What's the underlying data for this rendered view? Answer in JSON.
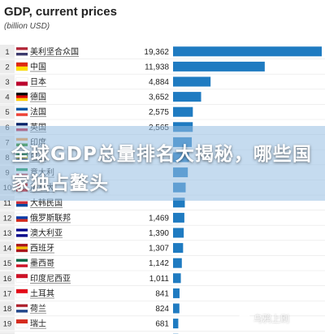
{
  "chart_data": {
    "type": "bar",
    "orientation": "horizontal",
    "title": "GDP, current prices",
    "subtitle": "(billion USD)",
    "ranks": [
      "1",
      "2",
      "3",
      "4",
      "5",
      "6",
      "7",
      "8",
      "9",
      "10",
      "11",
      "12",
      "13",
      "14",
      "15",
      "16",
      "17",
      "18",
      "19",
      "20"
    ],
    "categories": [
      "美利坚合众国",
      "中国",
      "日本",
      "德国",
      "法国",
      "英国",
      "印度",
      "巴西",
      "意大利",
      "加拿大",
      "大韩民国",
      "俄罗斯联邦",
      "澳大利亚",
      "西班牙",
      "墨西哥",
      "印度尼西亚",
      "土耳其",
      "荷兰",
      "瑞士",
      "沙特阿拉伯"
    ],
    "values": [
      19362,
      11938,
      4884,
      3652,
      2575,
      2565,
      2439,
      2081,
      1921,
      1640,
      1530,
      1469,
      1390,
      1307,
      1142,
      1011,
      841,
      824,
      681,
      679
    ],
    "value_labels": [
      "19,362",
      "11,938",
      "4,884",
      "3,652",
      "2,575",
      "2,565",
      "",
      "",
      "",
      "",
      "",
      "1,469",
      "1,390",
      "1,307",
      "1,142",
      "1,011",
      "841",
      "824",
      "681",
      "679"
    ],
    "flag_colors": [
      [
        "#b22234",
        "#ffffff",
        "#3c3b6e"
      ],
      [
        "#de2910",
        "#ffde00"
      ],
      [
        "#ffffff",
        "#bc002d"
      ],
      [
        "#000000",
        "#dd0000",
        "#ffce00"
      ],
      [
        "#0055a4",
        "#ffffff",
        "#ef4135"
      ],
      [
        "#012169",
        "#ffffff",
        "#c8102e"
      ],
      [
        "#ff9933",
        "#ffffff",
        "#138808"
      ],
      [
        "#009c3b",
        "#ffdf00",
        "#002776"
      ],
      [
        "#009246",
        "#ffffff",
        "#ce2b37"
      ],
      [
        "#ff0000",
        "#ffffff",
        "#ff0000"
      ],
      [
        "#ffffff",
        "#cd2e3a",
        "#0047a0"
      ],
      [
        "#ffffff",
        "#0039a6",
        "#d52b1e"
      ],
      [
        "#00008b",
        "#ffffff",
        "#00008b"
      ],
      [
        "#aa151b",
        "#f1bf00",
        "#aa151b"
      ],
      [
        "#006847",
        "#ffffff",
        "#ce1126"
      ],
      [
        "#ce1126",
        "#ffffff"
      ],
      [
        "#e30a17",
        "#ffffff"
      ],
      [
        "#ae1c28",
        "#ffffff",
        "#21468b"
      ],
      [
        "#d52b1e",
        "#ffffff"
      ],
      [
        "#006c35",
        "#ffffff"
      ]
    ],
    "bar_color": "#1f7bc1",
    "xlim": [
      0,
      20000
    ],
    "grid": false,
    "legend": "none"
  },
  "overlay": {
    "headline": "全球GDP总量排名大揭秘，哪些国家独占鳌头",
    "watermark": "乌鸦上刷"
  },
  "colors": {
    "accent": "#1f7bc1",
    "text": "#222222",
    "row_alt": "#f2f2f2"
  }
}
